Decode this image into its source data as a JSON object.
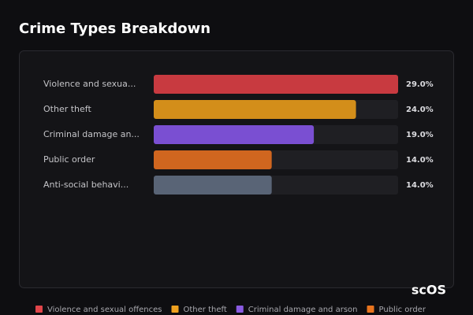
{
  "title": "Crime Types Breakdown",
  "chart_data": {
    "type": "bar",
    "orientation": "horizontal",
    "categories": [
      "Violence and sexua...",
      "Other theft",
      "Criminal damage an...",
      "Public order",
      "Anti-social behavi..."
    ],
    "values": [
      29,
      24,
      19,
      14,
      14
    ],
    "value_labels": [
      "29.0%",
      "24.0%",
      "19.0%",
      "14.0%",
      "14.0%"
    ],
    "colors": [
      "#c83a40",
      "#d38e1a",
      "#7a4fd2",
      "#d0661f",
      "#596476"
    ],
    "xlim": [
      0,
      29
    ],
    "legend": [
      {
        "name": "Violence and sexual offences",
        "color": "#e0454a"
      },
      {
        "name": "Other theft",
        "color": "#efa11f"
      },
      {
        "name": "Criminal damage and arson",
        "color": "#8a5be2"
      },
      {
        "name": "Public order",
        "color": "#e8741e"
      }
    ]
  },
  "watermark": "scOS"
}
